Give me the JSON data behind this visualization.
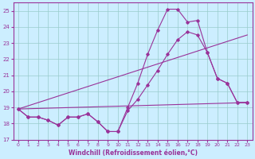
{
  "xlabel": "Windchill (Refroidissement éolien,°C)",
  "background_color": "#cceeff",
  "grid_color": "#99cccc",
  "line_color": "#993399",
  "xlim": [
    -0.5,
    23.5
  ],
  "ylim": [
    17,
    25.5
  ],
  "yticks": [
    17,
    18,
    19,
    20,
    21,
    22,
    23,
    24,
    25
  ],
  "xticks": [
    0,
    1,
    2,
    3,
    4,
    5,
    6,
    7,
    8,
    9,
    10,
    11,
    12,
    13,
    14,
    15,
    16,
    17,
    18,
    19,
    20,
    21,
    22,
    23
  ],
  "curve1_x": [
    0,
    1,
    2,
    3,
    4,
    5,
    6,
    7,
    8,
    9,
    10,
    11,
    12,
    13,
    14,
    15,
    16,
    17,
    18,
    19,
    20,
    21,
    22,
    23
  ],
  "curve1_y": [
    18.9,
    18.4,
    18.4,
    18.2,
    17.9,
    18.4,
    18.4,
    18.6,
    18.1,
    17.5,
    17.5,
    19.0,
    20.5,
    22.3,
    23.8,
    25.1,
    25.1,
    24.3,
    24.4,
    22.4,
    20.8,
    20.5,
    19.3,
    19.3
  ],
  "curve2_x": [
    0,
    1,
    2,
    3,
    4,
    5,
    6,
    7,
    8,
    9,
    10,
    11,
    12,
    13,
    14,
    15,
    16,
    17,
    18,
    19,
    20,
    21,
    22,
    23
  ],
  "curve2_y": [
    18.9,
    18.4,
    18.4,
    18.2,
    17.9,
    18.4,
    18.4,
    18.6,
    18.1,
    17.5,
    17.5,
    18.8,
    19.5,
    20.4,
    21.3,
    22.3,
    23.2,
    23.7,
    23.5,
    22.4,
    20.8,
    20.5,
    19.3,
    19.3
  ],
  "line1_x": [
    0,
    23
  ],
  "line1_y": [
    18.9,
    19.3
  ],
  "line2_x": [
    0,
    23
  ],
  "line2_y": [
    18.9,
    23.5
  ]
}
